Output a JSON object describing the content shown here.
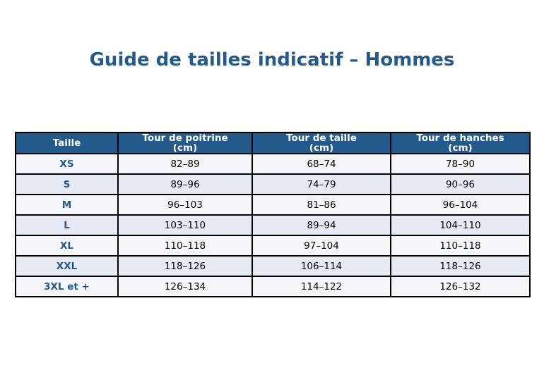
{
  "title": "Guide de tailles indicatif – Hommes",
  "colors": {
    "header_bg": "#235a8c",
    "header_text": "#ffffff",
    "size_text": "#235a8c",
    "row_light": "#f4f6fa",
    "row_dark": "#e6ebf3",
    "border": "#000000"
  },
  "table": {
    "headers": [
      [
        "Taille"
      ],
      [
        "Tour de poitrine",
        "(cm)"
      ],
      [
        "Tour de taille",
        "(cm)"
      ],
      [
        "Tour de hanches",
        "(cm)"
      ]
    ],
    "rows": [
      [
        "XS",
        "82–89",
        "68–74",
        "78–90"
      ],
      [
        "S",
        "89–96",
        "74–79",
        "90–96"
      ],
      [
        "M",
        "96–103",
        "81–86",
        "96–104"
      ],
      [
        "L",
        "103–110",
        "89–94",
        "104–110"
      ],
      [
        "XL",
        "110–118",
        "97–104",
        "110–118"
      ],
      [
        "XXL",
        "118–126",
        "106–114",
        "118–126"
      ],
      [
        "3XL et +",
        "126–134",
        "114–122",
        "126–132"
      ]
    ]
  }
}
